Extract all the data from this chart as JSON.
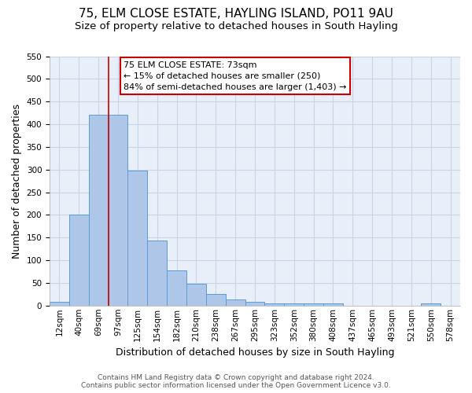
{
  "title": "75, ELM CLOSE ESTATE, HAYLING ISLAND, PO11 9AU",
  "subtitle": "Size of property relative to detached houses in South Hayling",
  "xlabel": "Distribution of detached houses by size in South Hayling",
  "ylabel": "Number of detached properties",
  "bar_labels": [
    "12sqm",
    "40sqm",
    "69sqm",
    "97sqm",
    "125sqm",
    "154sqm",
    "182sqm",
    "210sqm",
    "238sqm",
    "267sqm",
    "295sqm",
    "323sqm",
    "352sqm",
    "380sqm",
    "408sqm",
    "437sqm",
    "465sqm",
    "493sqm",
    "521sqm",
    "550sqm",
    "578sqm"
  ],
  "bar_heights": [
    8,
    200,
    420,
    420,
    298,
    143,
    78,
    48,
    25,
    13,
    8,
    5,
    5,
    5,
    5,
    0,
    0,
    0,
    0,
    5,
    0
  ],
  "bar_color": "#aec6e8",
  "bar_edge_color": "#5b9bd5",
  "ylim": [
    0,
    550
  ],
  "yticks": [
    0,
    50,
    100,
    150,
    200,
    250,
    300,
    350,
    400,
    450,
    500,
    550
  ],
  "vline_x": 2.5,
  "vline_color": "#cc0000",
  "annotation_title": "75 ELM CLOSE ESTATE: 73sqm",
  "annotation_line1": "← 15% of detached houses are smaller (250)",
  "annotation_line2": "84% of semi-detached houses are larger (1,403) →",
  "annotation_box_color": "#ffffff",
  "annotation_box_edge": "#cc0000",
  "footer1": "Contains HM Land Registry data © Crown copyright and database right 2024.",
  "footer2": "Contains public sector information licensed under the Open Government Licence v3.0.",
  "bg_color": "#ffffff",
  "plot_bg_color": "#e8eff8",
  "grid_color": "#c8d4e8",
  "title_fontsize": 11,
  "subtitle_fontsize": 9.5,
  "axis_label_fontsize": 9,
  "tick_fontsize": 7.5,
  "annotation_fontsize": 8,
  "footer_fontsize": 6.5
}
